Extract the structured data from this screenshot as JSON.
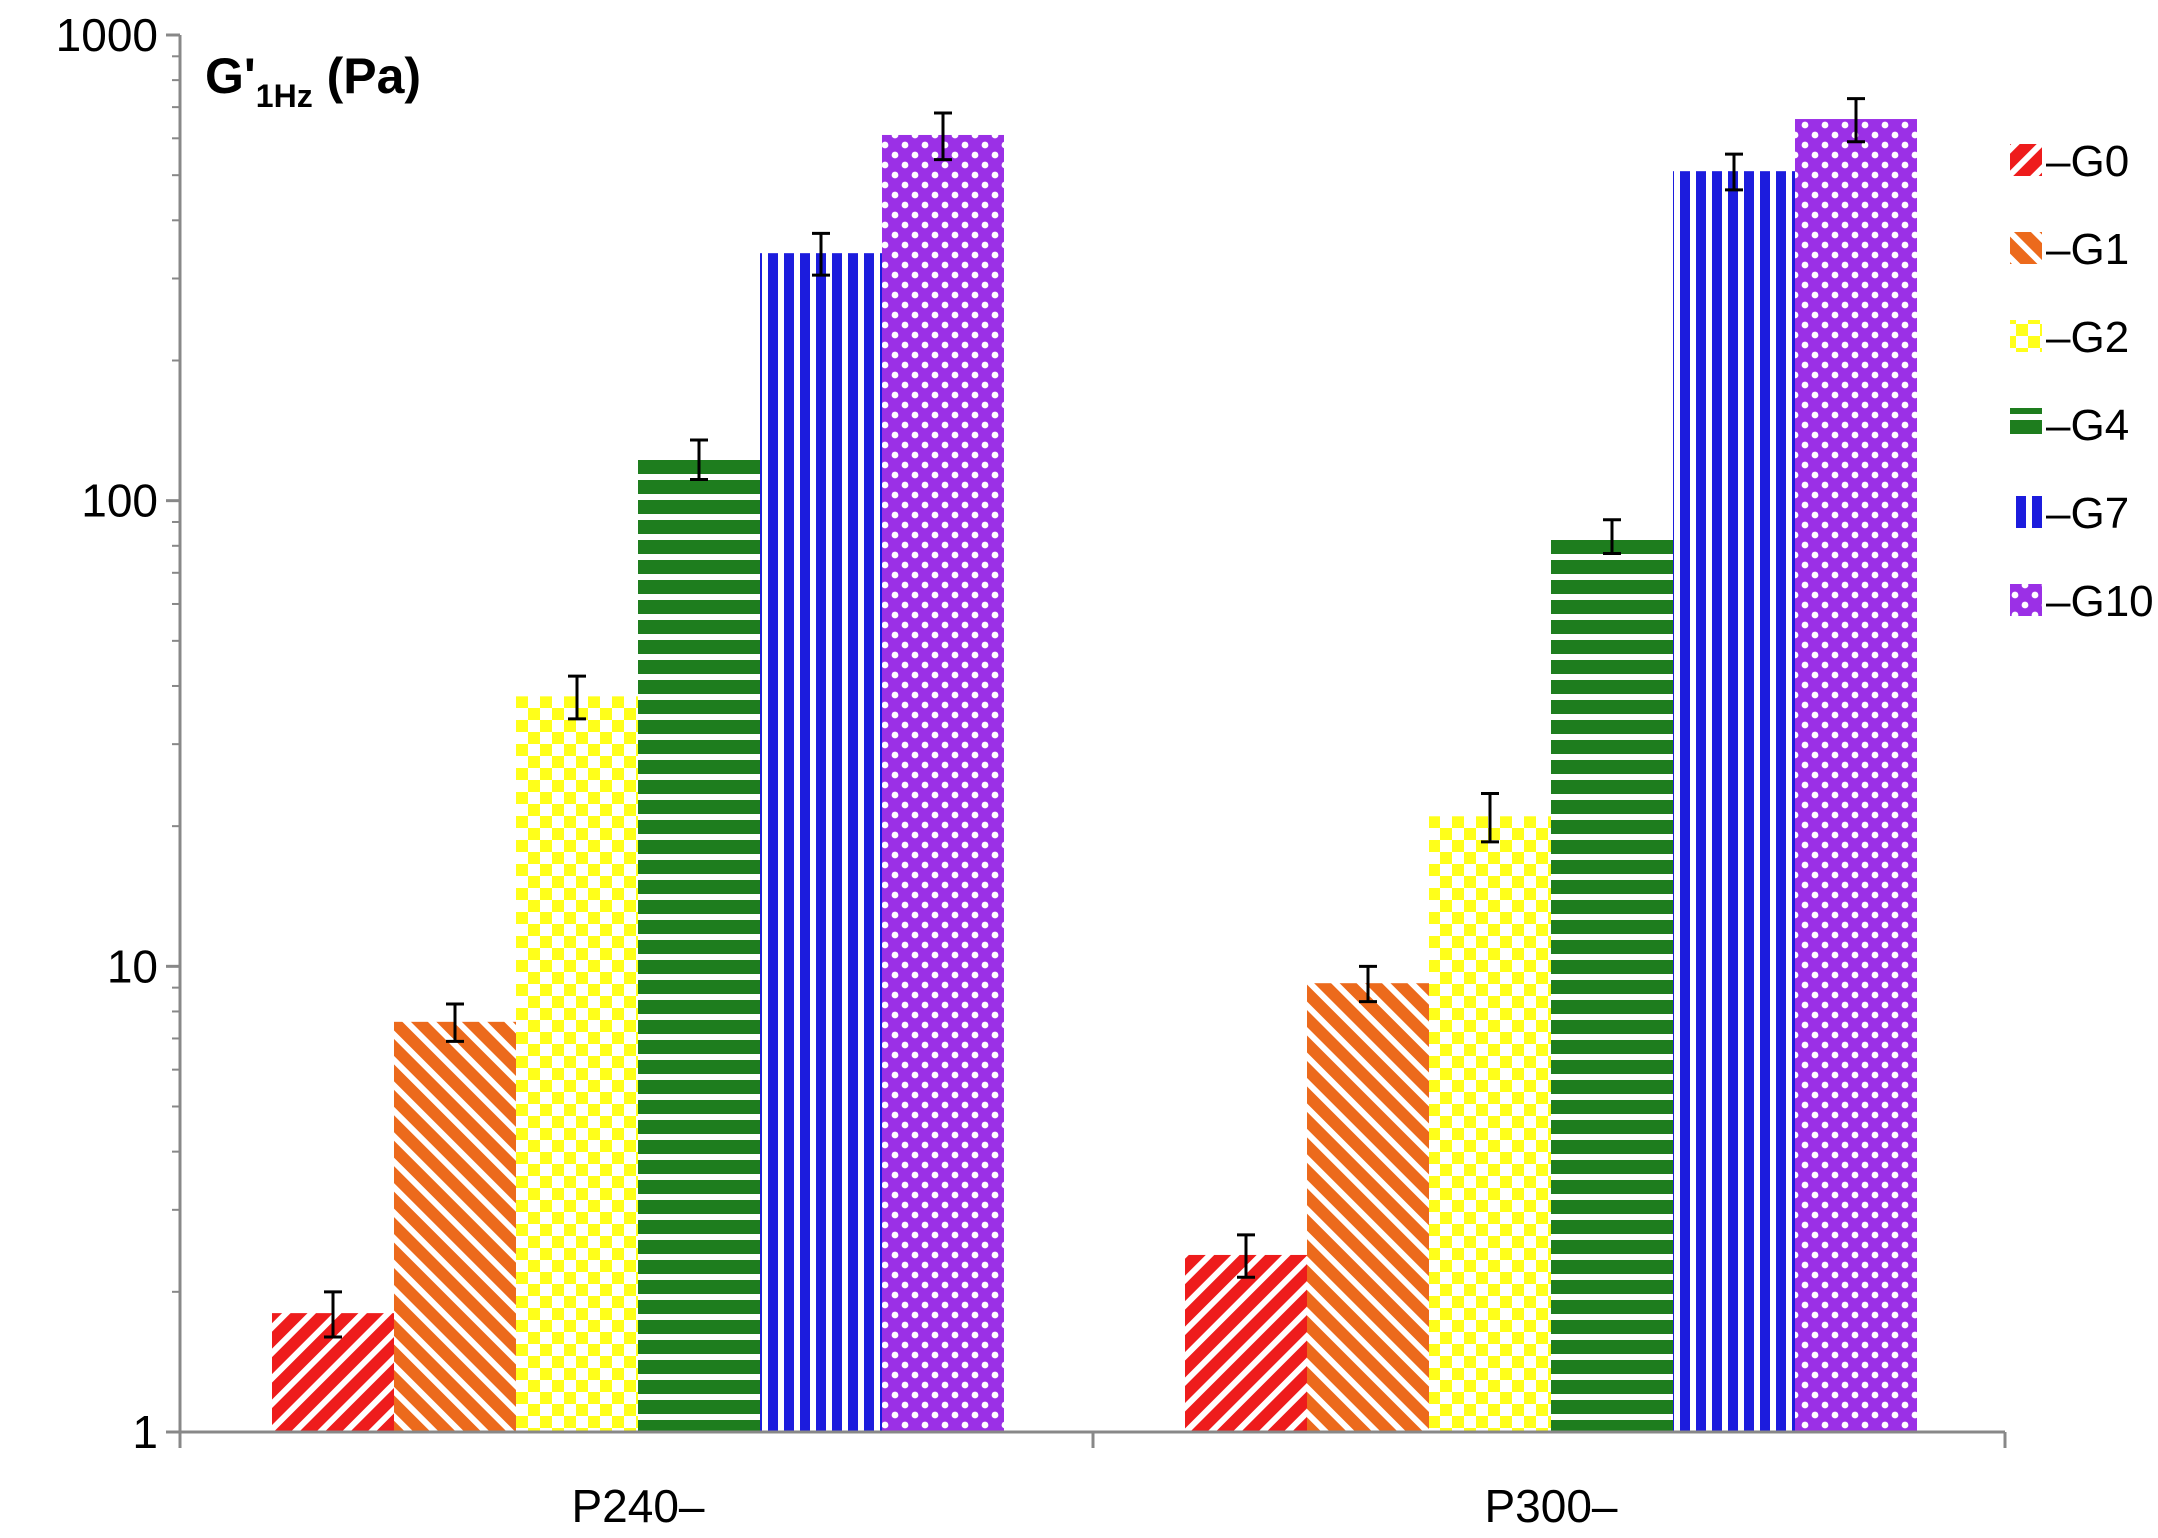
{
  "chart_data": {
    "type": "bar",
    "title_main": "G'",
    "title_sub": "1Hz",
    "title_unit": " (Pa)",
    "yscale": "log",
    "ylim": [
      1,
      1000
    ],
    "yticks": [
      "1",
      "10",
      "100",
      "1000"
    ],
    "categories": [
      "P240–",
      "P300–"
    ],
    "legend_position": "right",
    "series": [
      {
        "name": "–G0",
        "color": "#ee1c1c",
        "pattern": "diagonal-down",
        "values": [
          1.8,
          2.4
        ],
        "errors": [
          0.2,
          0.25
        ]
      },
      {
        "name": "–G1",
        "color": "#ec6a1c",
        "pattern": "diagonal-up",
        "values": [
          7.6,
          9.2
        ],
        "errors": [
          0.7,
          0.8
        ]
      },
      {
        "name": "–G2",
        "color": "#ffff1a",
        "pattern": "checker",
        "values": [
          38,
          21
        ],
        "errors": [
          4,
          2.5
        ]
      },
      {
        "name": "–G4",
        "color": "#1e7d1e",
        "pattern": "horizontal",
        "values": [
          123,
          84
        ],
        "errors": [
          12,
          7
        ]
      },
      {
        "name": "–G7",
        "color": "#1c1cdd",
        "pattern": "vertical",
        "values": [
          340,
          510
        ],
        "errors": [
          35,
          45
        ]
      },
      {
        "name": "–G10",
        "color": "#9b30e6",
        "pattern": "dots",
        "values": [
          610,
          660
        ],
        "errors": [
          70,
          70
        ]
      }
    ]
  }
}
